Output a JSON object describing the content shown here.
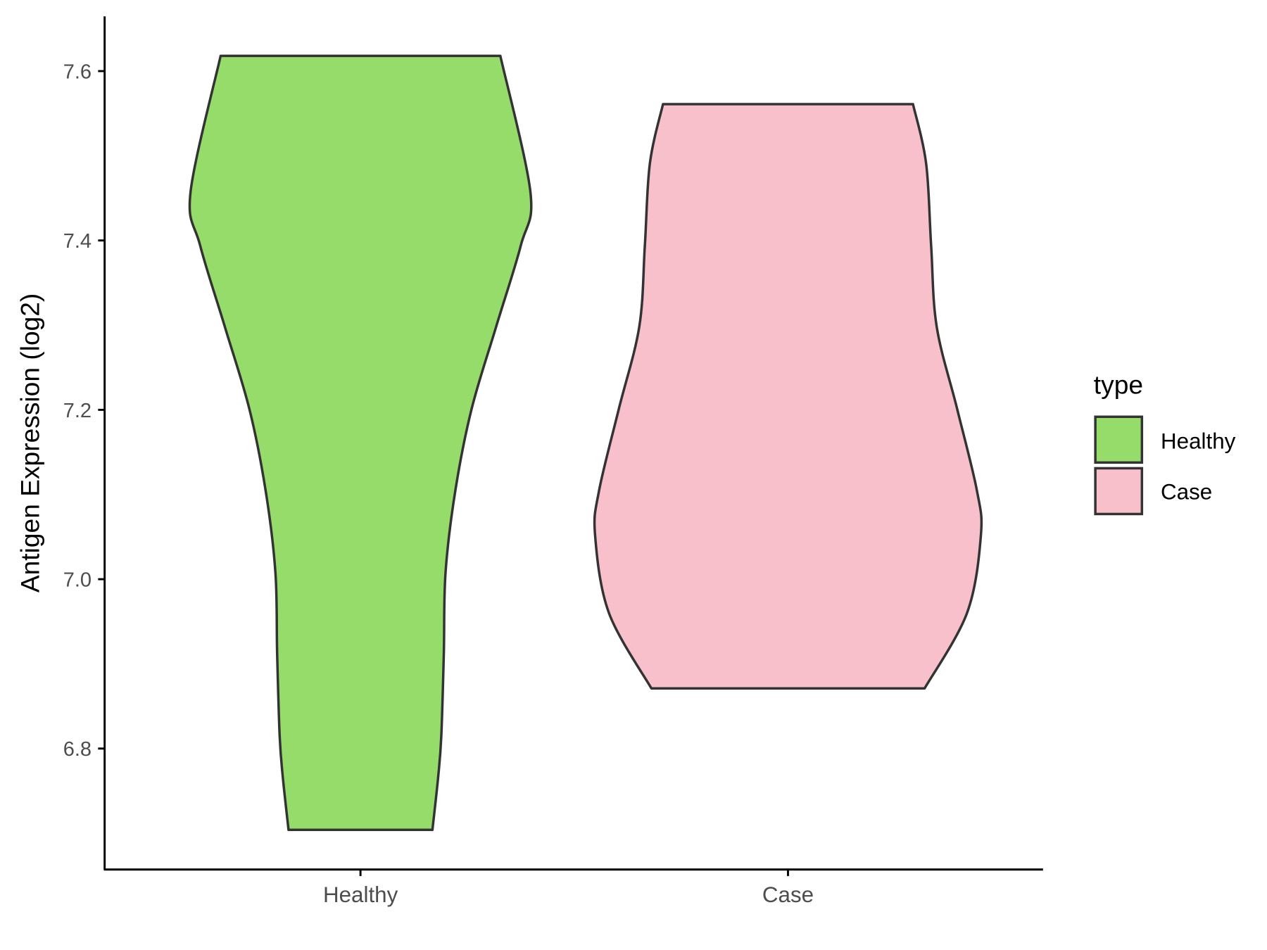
{
  "chart_data": {
    "type": "violin",
    "title": "",
    "xlabel": "",
    "ylabel": "Antigen Expression (log2)",
    "categories": [
      "Healthy",
      "Case"
    ],
    "yticks": [
      6.8,
      7.0,
      7.2,
      7.4,
      7.6
    ],
    "ytick_labels": [
      "6.8",
      "7.0",
      "7.2",
      "7.4",
      "7.6"
    ],
    "ylim": [
      6.66,
      7.665
    ],
    "grid": false,
    "legend": {
      "title": "type",
      "placement": "right",
      "entries": [
        "Healthy",
        "Case"
      ]
    },
    "colors": {
      "Healthy": "#95DC6A",
      "Case": "#F7C0CB",
      "outline": "#333333"
    },
    "series": [
      {
        "name": "Healthy",
        "min": 6.704,
        "max": 7.618,
        "density_profile": {
          "y": [
            6.704,
            6.767,
            6.815,
            6.912,
            7.008,
            7.105,
            7.201,
            7.298,
            7.394,
            7.457,
            7.618
          ],
          "relative_width": [
            0.373,
            0.403,
            0.419,
            0.432,
            0.441,
            0.492,
            0.576,
            0.703,
            0.831,
            0.881,
            0.725
          ]
        }
      },
      {
        "name": "Case",
        "min": 6.871,
        "max": 7.561,
        "density_profile": {
          "y": [
            6.871,
            6.96,
            7.052,
            7.105,
            7.201,
            7.298,
            7.394,
            7.491,
            7.561
          ],
          "relative_width": [
            0.708,
            0.928,
            1.0,
            0.979,
            0.877,
            0.771,
            0.742,
            0.716,
            0.648
          ]
        }
      }
    ]
  }
}
